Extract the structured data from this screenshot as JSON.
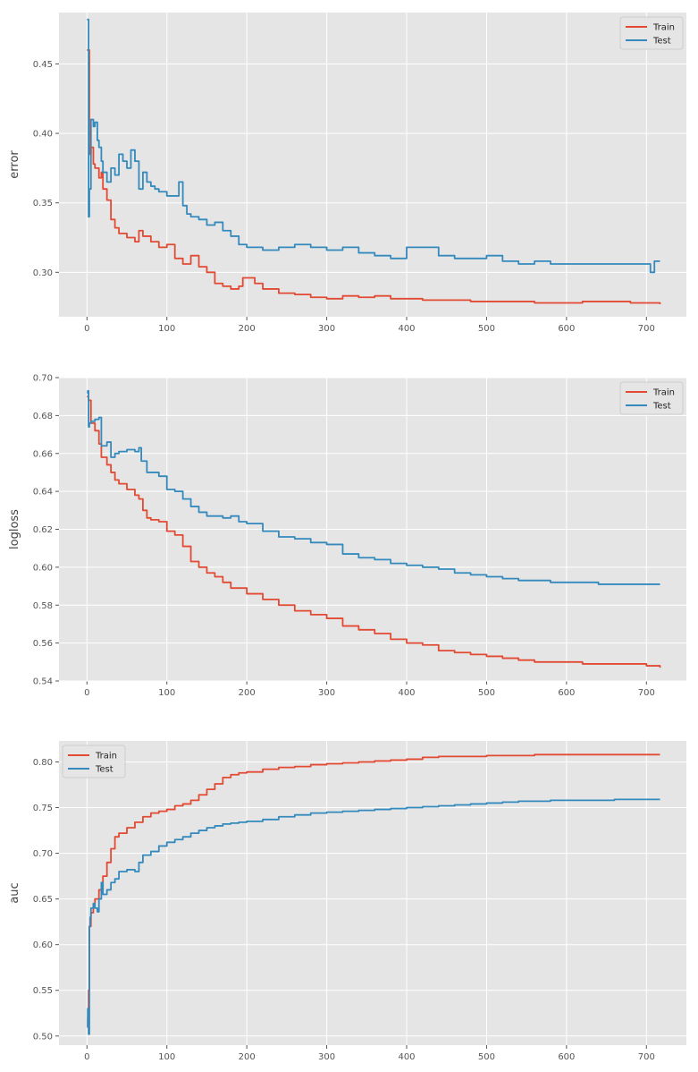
{
  "chart_data": [
    {
      "type": "line",
      "ylabel": "error",
      "xlim": [
        -35,
        750
      ],
      "ylim": [
        0.268,
        0.487
      ],
      "x_ticks": [
        0,
        100,
        200,
        300,
        400,
        500,
        600,
        700
      ],
      "y_ticks": [
        0.3,
        0.35,
        0.4,
        0.45
      ],
      "y_tick_labels": [
        "0.30",
        "0.35",
        "0.40",
        "0.45"
      ],
      "grid": true,
      "legend_position": "top-right",
      "series": [
        {
          "name": "Train",
          "color": "#E24A33",
          "x": [
            0,
            1,
            3,
            5,
            8,
            10,
            15,
            18,
            20,
            25,
            30,
            35,
            40,
            50,
            60,
            65,
            70,
            80,
            90,
            100,
            110,
            120,
            130,
            140,
            150,
            160,
            170,
            180,
            190,
            195,
            200,
            210,
            220,
            240,
            260,
            280,
            300,
            320,
            340,
            360,
            380,
            400,
            420,
            440,
            460,
            480,
            500,
            520,
            540,
            560,
            580,
            600,
            620,
            640,
            660,
            680,
            700,
            710,
            717
          ],
          "y": [
            0.46,
            0.46,
            0.385,
            0.39,
            0.378,
            0.375,
            0.368,
            0.372,
            0.36,
            0.352,
            0.338,
            0.332,
            0.328,
            0.325,
            0.322,
            0.33,
            0.326,
            0.322,
            0.318,
            0.32,
            0.31,
            0.306,
            0.312,
            0.304,
            0.3,
            0.292,
            0.29,
            0.288,
            0.29,
            0.296,
            0.296,
            0.292,
            0.288,
            0.285,
            0.284,
            0.282,
            0.281,
            0.283,
            0.282,
            0.283,
            0.281,
            0.281,
            0.28,
            0.28,
            0.28,
            0.279,
            0.279,
            0.279,
            0.279,
            0.278,
            0.278,
            0.278,
            0.279,
            0.279,
            0.279,
            0.278,
            0.278,
            0.278,
            0.277
          ]
        },
        {
          "name": "Test",
          "color": "#348ABD",
          "x": [
            0,
            1,
            2,
            3,
            5,
            8,
            10,
            13,
            15,
            18,
            20,
            25,
            30,
            35,
            40,
            45,
            50,
            55,
            60,
            65,
            70,
            75,
            80,
            85,
            90,
            100,
            110,
            115,
            120,
            125,
            130,
            140,
            150,
            160,
            170,
            180,
            190,
            200,
            220,
            240,
            260,
            280,
            300,
            320,
            340,
            360,
            380,
            400,
            420,
            440,
            460,
            480,
            500,
            520,
            540,
            560,
            580,
            600,
            620,
            640,
            660,
            680,
            700,
            705,
            710,
            717
          ],
          "y": [
            0.482,
            0.482,
            0.34,
            0.36,
            0.41,
            0.405,
            0.408,
            0.395,
            0.39,
            0.38,
            0.372,
            0.365,
            0.375,
            0.37,
            0.385,
            0.38,
            0.375,
            0.388,
            0.38,
            0.36,
            0.372,
            0.365,
            0.362,
            0.36,
            0.358,
            0.355,
            0.355,
            0.365,
            0.348,
            0.342,
            0.34,
            0.338,
            0.334,
            0.336,
            0.33,
            0.326,
            0.32,
            0.318,
            0.316,
            0.318,
            0.32,
            0.318,
            0.316,
            0.318,
            0.314,
            0.312,
            0.31,
            0.318,
            0.318,
            0.312,
            0.31,
            0.31,
            0.312,
            0.308,
            0.306,
            0.308,
            0.306,
            0.306,
            0.306,
            0.306,
            0.306,
            0.306,
            0.306,
            0.3,
            0.308,
            0.308
          ]
        }
      ]
    },
    {
      "type": "line",
      "ylabel": "logloss",
      "xlim": [
        -35,
        750
      ],
      "ylim": [
        0.54,
        0.7
      ],
      "x_ticks": [
        0,
        100,
        200,
        300,
        400,
        500,
        600,
        700
      ],
      "y_ticks": [
        0.54,
        0.56,
        0.58,
        0.6,
        0.62,
        0.64,
        0.66,
        0.68,
        0.7
      ],
      "y_tick_labels": [
        "0.54",
        "0.56",
        "0.58",
        "0.60",
        "0.62",
        "0.64",
        "0.66",
        "0.68",
        "0.70"
      ],
      "grid": true,
      "legend_position": "top-right",
      "series": [
        {
          "name": "Train",
          "color": "#E24A33",
          "x": [
            0,
            2,
            5,
            10,
            15,
            18,
            25,
            30,
            35,
            40,
            50,
            60,
            65,
            70,
            75,
            80,
            90,
            100,
            110,
            120,
            130,
            140,
            150,
            160,
            170,
            180,
            200,
            220,
            240,
            260,
            280,
            300,
            320,
            340,
            360,
            380,
            400,
            420,
            440,
            460,
            480,
            500,
            520,
            540,
            560,
            580,
            600,
            620,
            640,
            660,
            680,
            700,
            717
          ],
          "y": [
            0.69,
            0.688,
            0.676,
            0.672,
            0.665,
            0.658,
            0.654,
            0.65,
            0.646,
            0.644,
            0.641,
            0.638,
            0.636,
            0.63,
            0.626,
            0.625,
            0.624,
            0.619,
            0.617,
            0.611,
            0.603,
            0.6,
            0.597,
            0.595,
            0.592,
            0.589,
            0.586,
            0.583,
            0.58,
            0.577,
            0.575,
            0.573,
            0.569,
            0.567,
            0.565,
            0.562,
            0.56,
            0.559,
            0.556,
            0.555,
            0.554,
            0.553,
            0.552,
            0.551,
            0.55,
            0.55,
            0.55,
            0.549,
            0.549,
            0.549,
            0.549,
            0.548,
            0.547
          ]
        },
        {
          "name": "Test",
          "color": "#348ABD",
          "x": [
            0,
            1,
            2,
            3,
            5,
            10,
            15,
            18,
            25,
            30,
            35,
            40,
            50,
            60,
            65,
            68,
            75,
            80,
            90,
            100,
            110,
            120,
            130,
            140,
            150,
            160,
            170,
            180,
            190,
            200,
            220,
            240,
            260,
            280,
            300,
            320,
            340,
            360,
            380,
            400,
            420,
            440,
            460,
            480,
            500,
            520,
            540,
            560,
            580,
            600,
            620,
            640,
            660,
            680,
            700,
            717
          ],
          "y": [
            0.692,
            0.693,
            0.674,
            0.676,
            0.677,
            0.678,
            0.679,
            0.664,
            0.666,
            0.658,
            0.66,
            0.661,
            0.662,
            0.661,
            0.663,
            0.656,
            0.65,
            0.65,
            0.648,
            0.641,
            0.64,
            0.636,
            0.632,
            0.629,
            0.627,
            0.627,
            0.626,
            0.627,
            0.624,
            0.623,
            0.619,
            0.616,
            0.615,
            0.613,
            0.612,
            0.607,
            0.605,
            0.604,
            0.602,
            0.601,
            0.6,
            0.599,
            0.597,
            0.596,
            0.595,
            0.594,
            0.593,
            0.593,
            0.592,
            0.592,
            0.592,
            0.591,
            0.591,
            0.591,
            0.591,
            0.591
          ]
        }
      ]
    },
    {
      "type": "line",
      "ylabel": "auc",
      "xlim": [
        -35,
        750
      ],
      "ylim": [
        0.49,
        0.823
      ],
      "x_ticks": [
        0,
        100,
        200,
        300,
        400,
        500,
        600,
        700
      ],
      "y_ticks": [
        0.5,
        0.55,
        0.6,
        0.65,
        0.7,
        0.75,
        0.8
      ],
      "y_tick_labels": [
        "0.50",
        "0.55",
        "0.60",
        "0.65",
        "0.70",
        "0.75",
        "0.80"
      ],
      "grid": true,
      "legend_position": "top-left",
      "series": [
        {
          "name": "Train",
          "color": "#E24A33",
          "x": [
            0,
            1,
            2,
            3,
            5,
            8,
            10,
            15,
            20,
            25,
            30,
            35,
            40,
            50,
            60,
            70,
            80,
            90,
            100,
            110,
            120,
            130,
            140,
            150,
            160,
            170,
            180,
            190,
            200,
            220,
            240,
            260,
            280,
            300,
            320,
            340,
            360,
            380,
            400,
            420,
            440,
            460,
            480,
            500,
            520,
            540,
            560,
            580,
            600,
            620,
            640,
            660,
            680,
            700,
            717
          ],
          "y": [
            0.51,
            0.52,
            0.55,
            0.62,
            0.635,
            0.645,
            0.65,
            0.66,
            0.675,
            0.69,
            0.705,
            0.718,
            0.722,
            0.728,
            0.734,
            0.74,
            0.744,
            0.746,
            0.748,
            0.752,
            0.754,
            0.758,
            0.764,
            0.77,
            0.776,
            0.783,
            0.786,
            0.788,
            0.789,
            0.792,
            0.794,
            0.795,
            0.797,
            0.798,
            0.799,
            0.8,
            0.801,
            0.802,
            0.803,
            0.805,
            0.806,
            0.806,
            0.806,
            0.807,
            0.807,
            0.807,
            0.808,
            0.808,
            0.808,
            0.808,
            0.808,
            0.808,
            0.808,
            0.808,
            0.808
          ]
        },
        {
          "name": "Test",
          "color": "#348ABD",
          "x": [
            0,
            1,
            2,
            3,
            4,
            5,
            8,
            10,
            13,
            15,
            18,
            20,
            25,
            30,
            35,
            40,
            50,
            60,
            65,
            70,
            80,
            90,
            100,
            110,
            120,
            130,
            140,
            150,
            160,
            170,
            180,
            190,
            200,
            220,
            240,
            260,
            280,
            300,
            320,
            340,
            360,
            380,
            400,
            420,
            440,
            460,
            480,
            500,
            520,
            540,
            560,
            580,
            600,
            620,
            640,
            660,
            680,
            700,
            717
          ],
          "y": [
            0.51,
            0.53,
            0.502,
            0.62,
            0.63,
            0.64,
            0.645,
            0.64,
            0.636,
            0.65,
            0.668,
            0.655,
            0.66,
            0.668,
            0.672,
            0.68,
            0.682,
            0.68,
            0.69,
            0.698,
            0.702,
            0.708,
            0.712,
            0.715,
            0.718,
            0.722,
            0.725,
            0.728,
            0.73,
            0.732,
            0.733,
            0.734,
            0.735,
            0.737,
            0.74,
            0.742,
            0.744,
            0.745,
            0.746,
            0.747,
            0.748,
            0.749,
            0.75,
            0.751,
            0.752,
            0.753,
            0.754,
            0.755,
            0.756,
            0.757,
            0.757,
            0.758,
            0.758,
            0.758,
            0.758,
            0.759,
            0.759,
            0.759,
            0.759
          ]
        }
      ]
    }
  ]
}
